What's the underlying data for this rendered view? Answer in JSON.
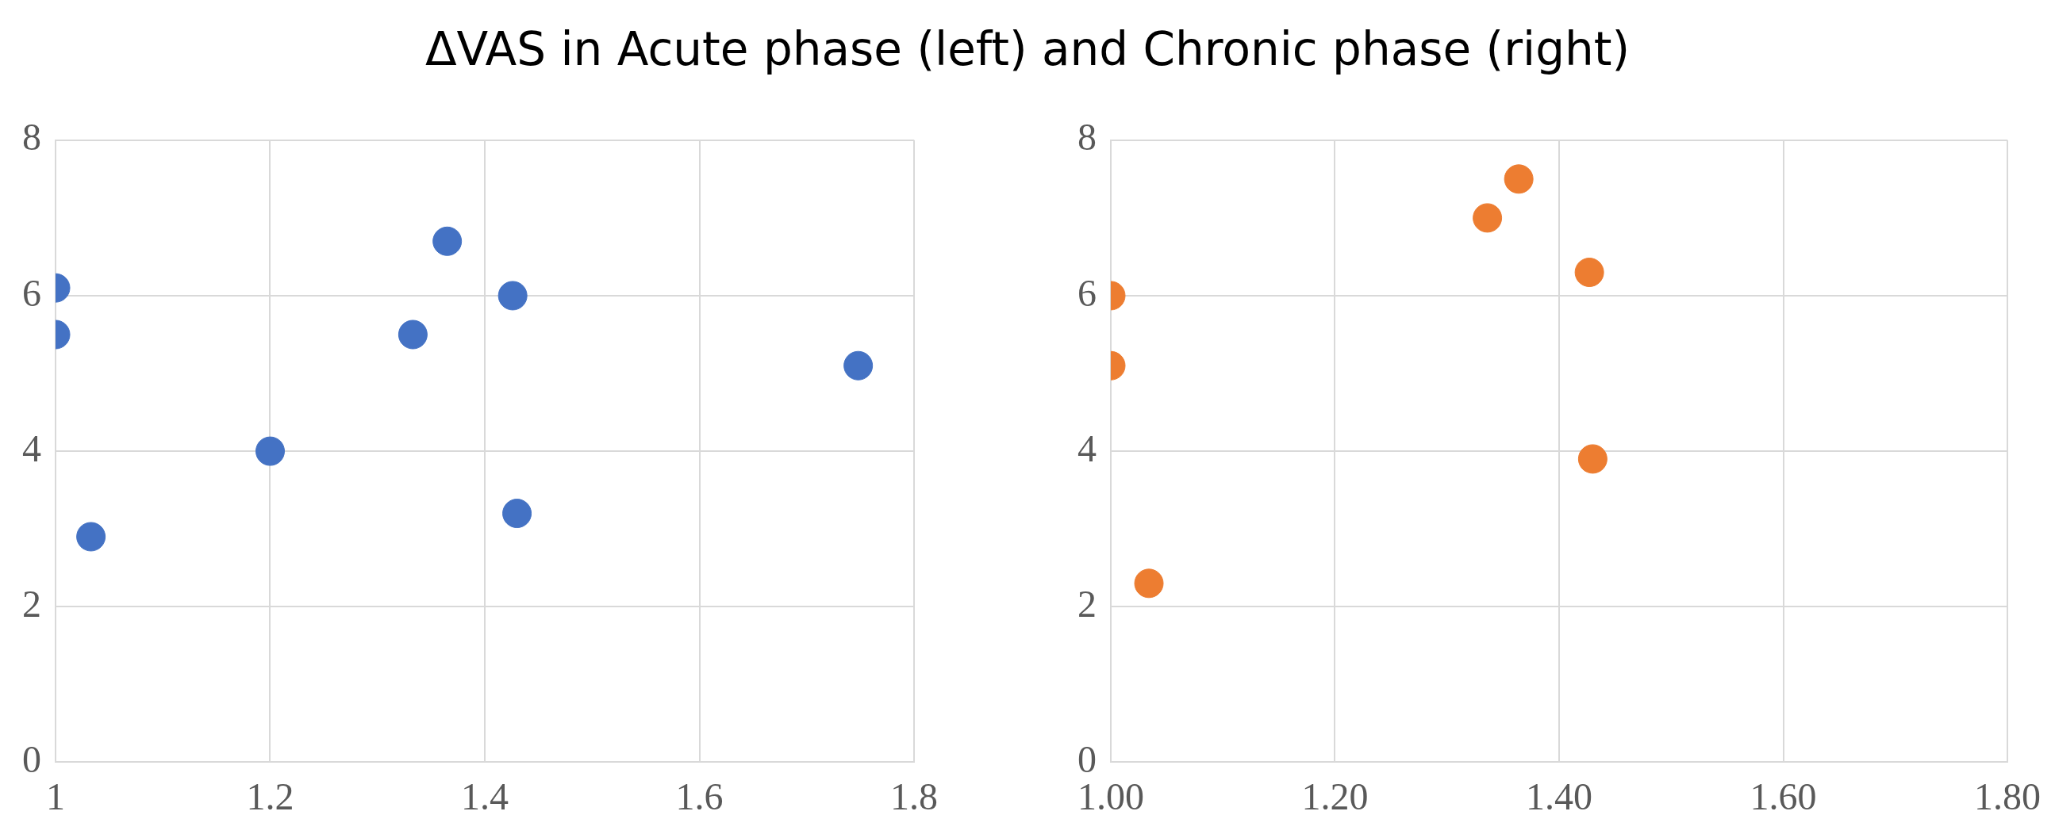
{
  "chart_data": [
    {
      "type": "scatter",
      "title": "ΔVAS in Acute phase (left) and Chronic phase (right)",
      "marker": "circle",
      "grid": true,
      "legend": false,
      "series": [
        {
          "color": "#4472c4",
          "x": [
            1,
            1,
            1.033,
            1.2,
            1.333,
            1.365,
            1.426,
            1.43,
            1.748
          ],
          "values": [
            6.1,
            5.5,
            2.9,
            4.0,
            5.5,
            6.7,
            6.0,
            3.2,
            5.1
          ]
        }
      ],
      "xlim": [
        1,
        1.8
      ],
      "xticks": [
        1,
        1.2,
        1.4,
        1.6,
        1.8
      ],
      "ylim": [
        0,
        8
      ],
      "yticks": [
        0,
        2,
        4,
        6,
        8
      ]
    },
    {
      "type": "scatter",
      "marker": "circle",
      "grid": true,
      "legend": false,
      "series": [
        {
          "color": "#ed7d31",
          "x": [
            1,
            1,
            1.034,
            1.336,
            1.364,
            1.427,
            1.43
          ],
          "values": [
            6.0,
            5.1,
            2.3,
            7.0,
            7.5,
            6.3,
            3.9
          ]
        }
      ],
      "xlim": [
        1,
        1.8
      ],
      "xticks": [
        {
          "value": 1,
          "label": "1.00"
        },
        {
          "value": 1.2,
          "label": "1.20"
        },
        {
          "value": 1.4,
          "label": "1.40"
        },
        {
          "value": 1.6,
          "label": "1.60"
        },
        {
          "value": 1.8,
          "label": "1.80"
        }
      ],
      "ylim": [
        0,
        8
      ],
      "yticks": [
        0,
        2,
        4,
        6,
        8
      ]
    }
  ]
}
